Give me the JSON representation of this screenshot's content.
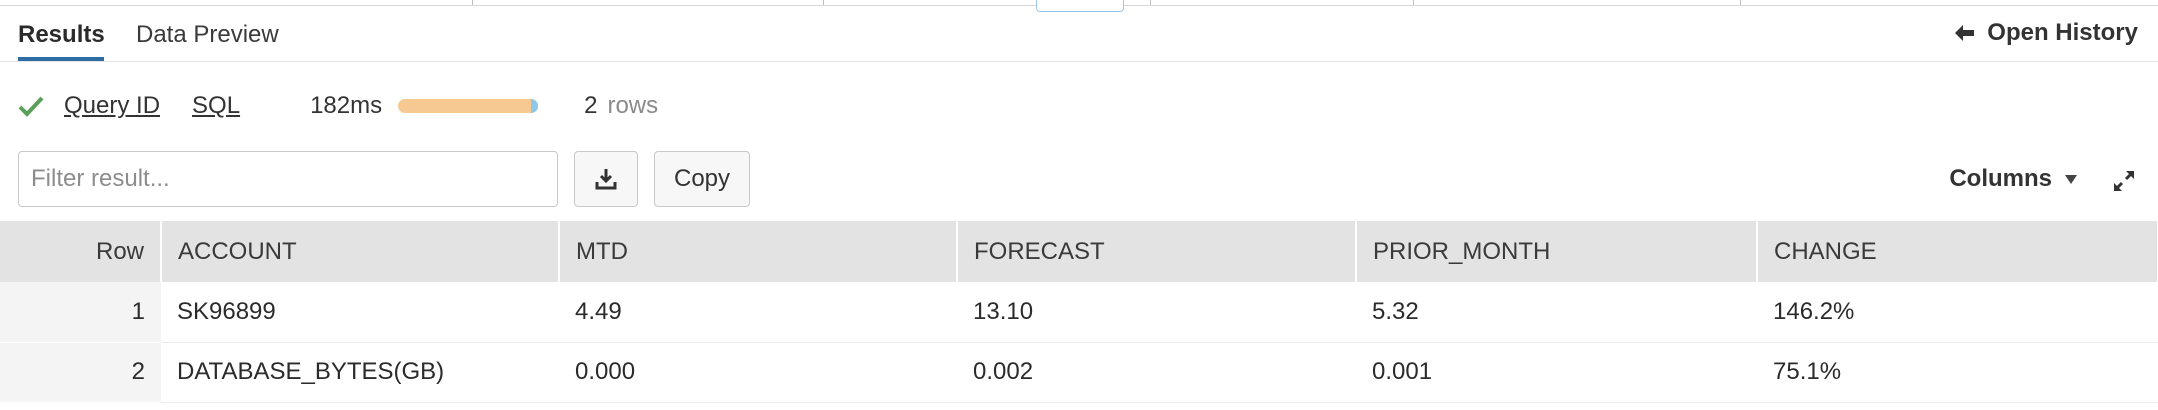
{
  "tabs": [
    {
      "label": "Results",
      "active": true
    },
    {
      "label": "Data Preview",
      "active": false
    }
  ],
  "open_history_label": "Open History",
  "status": {
    "state": "success",
    "query_id_label": "Query ID",
    "sql_label": "SQL",
    "elapsed": "182ms",
    "progress_fraction": 1.0,
    "row_count": "2",
    "rows_label": "rows"
  },
  "toolbar": {
    "filter_placeholder": "Filter result...",
    "copy_label": "Copy",
    "columns_label": "Columns",
    "download_icon": "download-icon",
    "expand_icon": "expand-icon"
  },
  "table": {
    "row_header": "Row",
    "columns": [
      "ACCOUNT",
      "MTD",
      "FORECAST",
      "PRIOR_MONTH",
      "CHANGE"
    ],
    "rows": [
      {
        "num": "1",
        "cells": [
          "SK96899",
          "4.49",
          "13.10",
          "5.32",
          "146.2%"
        ]
      },
      {
        "num": "2",
        "cells": [
          "DATABASE_BYTES(GB)",
          "0.000",
          "0.002",
          "0.001",
          "75.1%"
        ]
      }
    ]
  },
  "colors": {
    "accent": "#2e6da4",
    "success": "#5aa05a",
    "progress_fill": "#f6c992",
    "progress_tail": "#8ec7e8",
    "header_bg": "#e3e3e3"
  }
}
